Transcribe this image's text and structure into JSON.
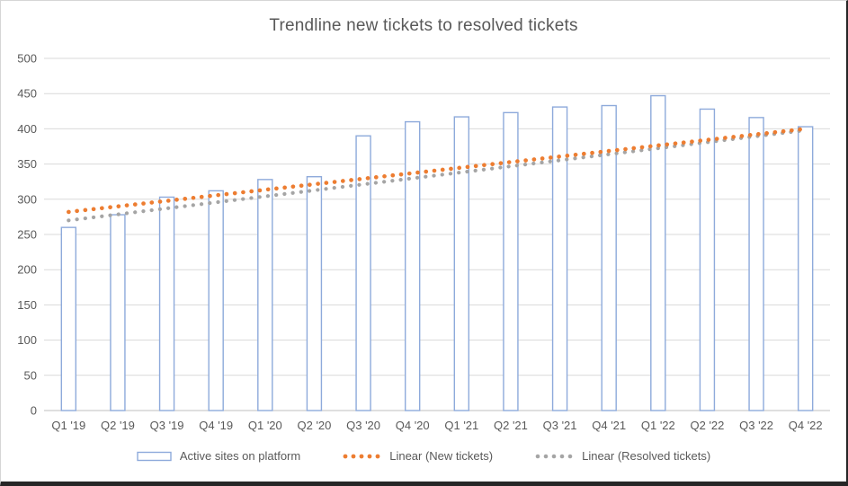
{
  "chart_data": {
    "type": "bar",
    "title": "Trendline new tickets to resolved tickets",
    "categories": [
      "Q1 '19",
      "Q2 '19",
      "Q3 '19",
      "Q4 '19",
      "Q1 '20",
      "Q2 '20",
      "Q3 '20",
      "Q4 '20",
      "Q1 '21",
      "Q2 '21",
      "Q3 '21",
      "Q4 '21",
      "Q1 '22",
      "Q2 '22",
      "Q3 '22",
      "Q4 '22"
    ],
    "series": [
      {
        "name": "Active sites on platform",
        "type": "bar",
        "values": [
          260,
          278,
          303,
          312,
          328,
          332,
          390,
          410,
          417,
          423,
          431,
          433,
          447,
          428,
          416,
          403
        ]
      },
      {
        "name": "Linear (New tickets)",
        "type": "linear-trendline",
        "values": [
          282,
          290,
          298,
          306,
          313,
          321,
          329,
          337,
          345,
          353,
          361,
          369,
          376,
          384,
          392,
          400
        ]
      },
      {
        "name": "Linear (Resolved tickets)",
        "type": "linear-trendline",
        "values": [
          270,
          279,
          287,
          296,
          304,
          313,
          321,
          330,
          338,
          347,
          355,
          364,
          372,
          381,
          389,
          398
        ]
      }
    ],
    "xlabel": "",
    "ylabel": "",
    "y_axis": {
      "min": 0,
      "max": 500,
      "step": 50,
      "ticks": [
        0,
        50,
        100,
        150,
        200,
        250,
        300,
        350,
        400,
        450,
        500
      ]
    },
    "grid": true,
    "legend_position": "bottom"
  },
  "colors": {
    "bar_stroke": "#8EAADB",
    "bar_fill": "#FFFFFF",
    "trendline_new": "#ED7D31",
    "trendline_resolved": "#A5A5A5",
    "gridline": "#D9D9D9",
    "axis_line": "#BFBFBF",
    "text": "#595959",
    "frame_light": "#D6D6D6",
    "frame_dark": "#262626"
  }
}
